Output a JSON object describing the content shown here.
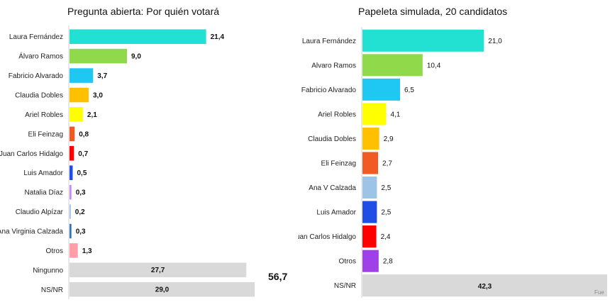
{
  "chart_data": [
    {
      "type": "bar",
      "orientation": "horizontal",
      "title": "Pregunta abierta: Por quién votará",
      "xlim": [
        0,
        30
      ],
      "categories": [
        "Laura Fernández",
        "Álvaro Ramos",
        "Fabricio Alvarado",
        "Claudia Dobles",
        "Ariel Robles",
        "Eli Feinzag",
        "Juan Carlos Hidalgo",
        "Luis Amador",
        "Natalia Díaz",
        "Claudio Alpízar",
        "Ana Virginia Calzada",
        "Otros",
        "Ningunno",
        "NS/NR"
      ],
      "values": [
        21.4,
        9.0,
        3.7,
        3.0,
        2.1,
        0.8,
        0.7,
        0.5,
        0.3,
        0.2,
        0.3,
        1.3,
        27.7,
        29.0
      ],
      "value_labels": [
        "21,4",
        "9,0",
        "3,7",
        "3,0",
        "2,1",
        "0,8",
        "0,7",
        "0,5",
        "0,3",
        "0,2",
        "0,3",
        "1,3",
        "27,7",
        "29,0"
      ],
      "colors": [
        "#22e0d2",
        "#8fd94a",
        "#1ec8f2",
        "#ffc000",
        "#ffff00",
        "#f15a22",
        "#ff0000",
        "#1f4ee6",
        "#cc88ee",
        "#9dc3e6",
        "#2e75b6",
        "#ff9ea8",
        "#d9d9d9",
        "#d9d9d9"
      ],
      "annotation": "56,7",
      "grid": false,
      "legend": "none"
    },
    {
      "type": "bar",
      "orientation": "horizontal",
      "title": "Papeleta simulada, 20 candidatos",
      "xlim": [
        0,
        42.3
      ],
      "categories": [
        "Laura Fernández",
        "Alvaro Ramos",
        "Fabricio Alvarado",
        "Ariel Robles",
        "Claudia Dobles",
        "Eli Feinzag",
        "Ana V Calzada",
        "Luis Amador",
        "Juan Carlos Hidalgo",
        "Otros",
        "NS/NR"
      ],
      "values": [
        21.0,
        10.4,
        6.5,
        4.1,
        2.9,
        2.7,
        2.5,
        2.5,
        2.4,
        2.8,
        42.3
      ],
      "value_labels": [
        "21,0",
        "10,4",
        "6,5",
        "4,1",
        "2,9",
        "2,7",
        "2,5",
        "2,5",
        "2,4",
        "2,8",
        "42,3"
      ],
      "colors": [
        "#22e0d2",
        "#8fd94a",
        "#1ec8f2",
        "#ffff00",
        "#ffc000",
        "#f15a22",
        "#9dc3e6",
        "#1f4ee6",
        "#ff0000",
        "#a040e8",
        "#d9d9d9"
      ],
      "grid": false,
      "legend": "none"
    }
  ],
  "footnote": "Fue"
}
